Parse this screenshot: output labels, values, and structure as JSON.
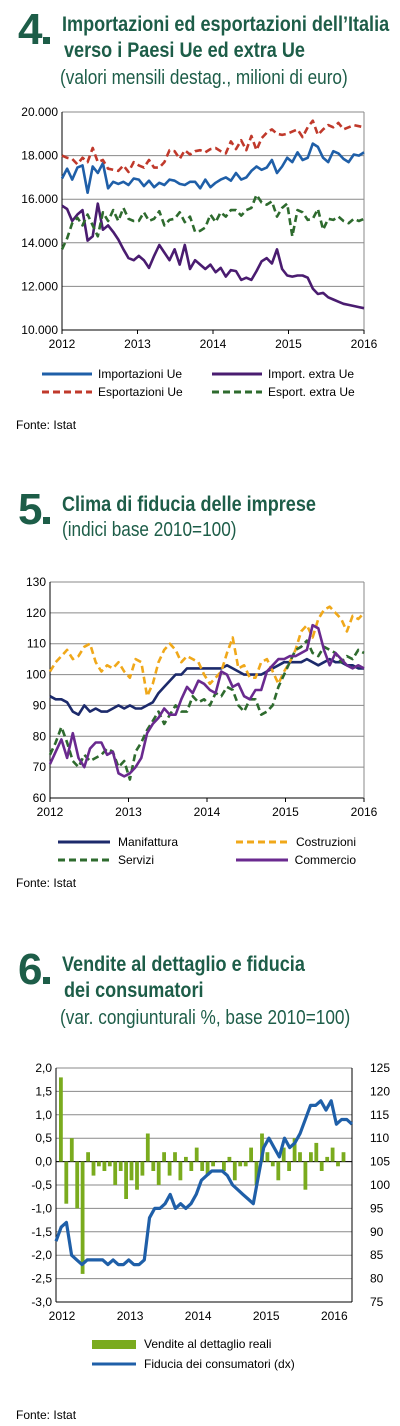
{
  "chart_data": [
    {
      "type": "line",
      "number": "4",
      "title_line1": "Importazioni ed esportazioni dell’Italia",
      "title_line2": "verso i Paesi Ue ed extra Ue",
      "subtitle": "(valori mensili destag., milioni di euro)",
      "source": "Fonte: Istat",
      "x_ticks": [
        "2012",
        "2013",
        "2014",
        "2015",
        "2016"
      ],
      "y_ticks": [
        "20.000",
        "18.000",
        "16.000",
        "14.000",
        "12.000",
        "10.000"
      ],
      "ylim": [
        10000,
        20000
      ],
      "x_start": "2012-01",
      "x_end": "2016-03",
      "grid": true,
      "series": [
        {
          "name": "Importazioni Ue",
          "color": "#1f5fa8",
          "dash": "solid",
          "values": [
            16950,
            17400,
            16900,
            17450,
            17550,
            16300,
            17500,
            17200,
            17650,
            16500,
            16800,
            16700,
            16800,
            16650,
            16950,
            16900,
            16600,
            16850,
            16550,
            16750,
            16650,
            16900,
            16850,
            16700,
            16650,
            16800,
            16800,
            16500,
            16900,
            16550,
            16750,
            16900,
            17000,
            16850,
            17200,
            16900,
            17000,
            17300,
            17500,
            17350,
            17450,
            17800,
            17200,
            17500,
            17900,
            17700,
            18150,
            17800,
            17900,
            18550,
            18400,
            17900,
            17700,
            18200,
            18100,
            17850,
            17700,
            18050,
            18000,
            18150
          ]
        },
        {
          "name": "Import. extra Ue",
          "color": "#4a1c70",
          "dash": "solid",
          "values": [
            15700,
            15550,
            15000,
            15300,
            15500,
            14100,
            14300,
            15800,
            14600,
            14800,
            14500,
            14150,
            13700,
            13300,
            13200,
            13400,
            13200,
            12850,
            13400,
            13900,
            13550,
            13200,
            13700,
            13000,
            13900,
            12800,
            13200,
            13000,
            12800,
            13000,
            12650,
            12850,
            12450,
            12750,
            12700,
            12300,
            12400,
            12300,
            12700,
            13150,
            13300,
            13050,
            13700,
            12800,
            12500,
            12450,
            12500,
            12500,
            12400,
            11900,
            11650,
            11700,
            11500,
            11400,
            11300,
            11200,
            11150,
            11100,
            11050,
            11000
          ]
        },
        {
          "name": "Esportazioni Ue",
          "color": "#c0392b",
          "dash": "dash",
          "values": [
            18000,
            17900,
            17850,
            17600,
            17900,
            17700,
            18350,
            17700,
            17800,
            17400,
            17350,
            17300,
            17550,
            17250,
            17700,
            17550,
            17450,
            17800,
            17450,
            17450,
            17700,
            18250,
            18200,
            17850,
            18250,
            18050,
            18200,
            18250,
            18150,
            18300,
            18350,
            18200,
            18100,
            18650,
            18300,
            18700,
            18250,
            18900,
            18250,
            18800,
            19050,
            19200,
            19000,
            18950,
            19000,
            19100,
            19200,
            18850,
            19300,
            19600,
            18950,
            19200,
            19400,
            19300,
            19500,
            19200,
            19300,
            19400,
            19350,
            19300
          ]
        },
        {
          "name": "Esport. extra Ue",
          "color": "#2e6b2e",
          "dash": "dash",
          "values": [
            13700,
            14200,
            14900,
            15150,
            14800,
            15300,
            14800,
            14300,
            15400,
            15000,
            15500,
            15000,
            15600,
            15100,
            15000,
            15000,
            15400,
            15000,
            15100,
            15450,
            14800,
            15050,
            15100,
            15400,
            14950,
            15200,
            14500,
            14550,
            14700,
            15300,
            14950,
            15400,
            15200,
            15500,
            15500,
            15250,
            15500,
            15600,
            16200,
            15850,
            15750,
            15900,
            15200,
            15600,
            15800,
            14300,
            15500,
            15400,
            15050,
            15100,
            15550,
            14600,
            15100,
            15050,
            15200,
            15000,
            14900,
            15100,
            15000,
            15100
          ]
        }
      ],
      "legend": [
        [
          "Importazioni Ue",
          "Import. extra Ue"
        ],
        [
          "Esportazioni Ue",
          "Esport. extra Ue"
        ]
      ]
    },
    {
      "type": "line",
      "number": "5",
      "title_line1": "Clima di fiducia delle imprese",
      "subtitle": "(indici base 2010=100)",
      "source": "Fonte: Istat",
      "x_ticks": [
        "2012",
        "2013",
        "2014",
        "2015",
        "2016"
      ],
      "y_ticks": [
        "130",
        "120",
        "110",
        "100",
        "90",
        "80",
        "70",
        "60"
      ],
      "ylim": [
        60,
        130
      ],
      "grid": true,
      "series": [
        {
          "name": "Manifattura",
          "color": "#1c2a6b",
          "dash": "solid",
          "values": [
            93,
            92,
            92,
            91,
            88,
            87,
            90,
            88,
            89,
            88,
            88,
            89,
            90,
            89,
            90,
            89,
            89,
            90,
            91,
            94,
            96,
            98,
            100,
            100,
            102,
            102,
            102,
            102,
            102,
            102,
            102,
            103,
            102,
            101,
            100,
            100,
            100,
            100,
            101,
            102,
            103,
            104,
            104,
            104,
            104,
            105,
            104,
            103,
            104,
            105,
            104,
            104,
            103,
            103,
            102,
            102
          ]
        },
        {
          "name": "Costruzioni",
          "color": "#f0a81a",
          "dash": "dash",
          "values": [
            101,
            104,
            106,
            108,
            105,
            106,
            109,
            110,
            104,
            101,
            103,
            102,
            104,
            101,
            99,
            105,
            104,
            93,
            97,
            104,
            108,
            110,
            108,
            104,
            106,
            105,
            104,
            100,
            97,
            99,
            101,
            107,
            112,
            102,
            103,
            99,
            99,
            104,
            105,
            101,
            97,
            101,
            104,
            108,
            114,
            116,
            112,
            118,
            121,
            122,
            120,
            118,
            114,
            119,
            118,
            120
          ]
        },
        {
          "name": "Servizi",
          "color": "#2e6b2e",
          "dash": "dash",
          "values": [
            74,
            78,
            83,
            78,
            72,
            70,
            74,
            72,
            73,
            74,
            76,
            75,
            70,
            72,
            66,
            75,
            78,
            82,
            85,
            88,
            84,
            87,
            90,
            88,
            88,
            93,
            91,
            92,
            90,
            94,
            93,
            96,
            95,
            90,
            88,
            92,
            92,
            87,
            88,
            90,
            96,
            100,
            104,
            108,
            109,
            111,
            107,
            106,
            109,
            108,
            107,
            104,
            106,
            105,
            108,
            107
          ]
        },
        {
          "name": "Commercio",
          "color": "#6a2a8f",
          "dash": "solid",
          "values": [
            71,
            75,
            79,
            73,
            81,
            73,
            70,
            76,
            78,
            78,
            74,
            75,
            68,
            67,
            68,
            70,
            73,
            81,
            84,
            86,
            89,
            87,
            87,
            92,
            96,
            94,
            98,
            97,
            95,
            94,
            101,
            100,
            96,
            97,
            93,
            92,
            95,
            95,
            101,
            103,
            105,
            105,
            106,
            106,
            107,
            108,
            116,
            115,
            108,
            103,
            107,
            105,
            103,
            102,
            103,
            102
          ]
        }
      ],
      "legend": [
        [
          "Manifattura",
          "Costruzioni"
        ],
        [
          "Servizi",
          "Commercio"
        ]
      ]
    },
    {
      "type": "bar+line",
      "number": "6",
      "title_line1": "Vendite al dettaglio e fiducia",
      "title_line2": "dei consumatori",
      "subtitle": "(var. congiunturali %, base 2010=100)",
      "source": "Fonte: Istat",
      "x_ticks": [
        "2012",
        "2013",
        "2014",
        "2015",
        "2016"
      ],
      "y_left_ticks": [
        "2,0",
        "1,5",
        "1,0",
        "0,5",
        "0,0",
        "-0,5",
        "-1,0",
        "-1,5",
        "-2,0",
        "-2,5",
        "-3,0"
      ],
      "y_right_ticks": [
        "125",
        "120",
        "115",
        "110",
        "105",
        "100",
        "95",
        "90",
        "85",
        "80",
        "75"
      ],
      "ylim_left": [
        -3.0,
        2.0
      ],
      "ylim_right": [
        75,
        125
      ],
      "grid": true,
      "series": [
        {
          "name": "Vendite al dettaglio reali",
          "color": "#7aab1e",
          "kind": "bar",
          "axis": "left",
          "values": [
            1.8,
            -0.9,
            0.5,
            -1.0,
            -2.4,
            0.2,
            -0.3,
            -0.1,
            -0.2,
            -0.1,
            -0.5,
            -0.2,
            -0.8,
            -0.4,
            -0.6,
            -0.3,
            0.6,
            -0.2,
            -0.5,
            0.2,
            -0.3,
            0.2,
            -0.4,
            0.1,
            -0.2,
            0.3,
            -0.2,
            -0.3,
            -0.1,
            0.0,
            -0.2,
            0.1,
            -0.4,
            -0.1,
            -0.1,
            0.3,
            -0.5,
            0.6,
            0.2,
            -0.1,
            -0.4,
            0.3,
            -0.2,
            0.5,
            0.2,
            -0.6,
            0.2,
            0.4,
            -0.2,
            0.1,
            0.3,
            -0.1,
            0.2
          ]
        },
        {
          "name": "Fiducia dei consumatori (dx)",
          "color": "#1f5fa8",
          "kind": "line",
          "axis": "right",
          "values": [
            88,
            91,
            92,
            85,
            84,
            83,
            84,
            84,
            84,
            84,
            83,
            84,
            83,
            83,
            84,
            83,
            83,
            84,
            93,
            95,
            95,
            96,
            98,
            95,
            96,
            95,
            96,
            98,
            101,
            102,
            103,
            103,
            103,
            102,
            100,
            99,
            98,
            97,
            96,
            102,
            108,
            110,
            108,
            106,
            110,
            108,
            109,
            111,
            114,
            117,
            117,
            118,
            116,
            118,
            113,
            114,
            114,
            113
          ]
        }
      ],
      "legend": [
        [
          "Vendite al dettaglio reali"
        ],
        [
          "Fiducia dei consumatori (dx)"
        ]
      ]
    }
  ]
}
